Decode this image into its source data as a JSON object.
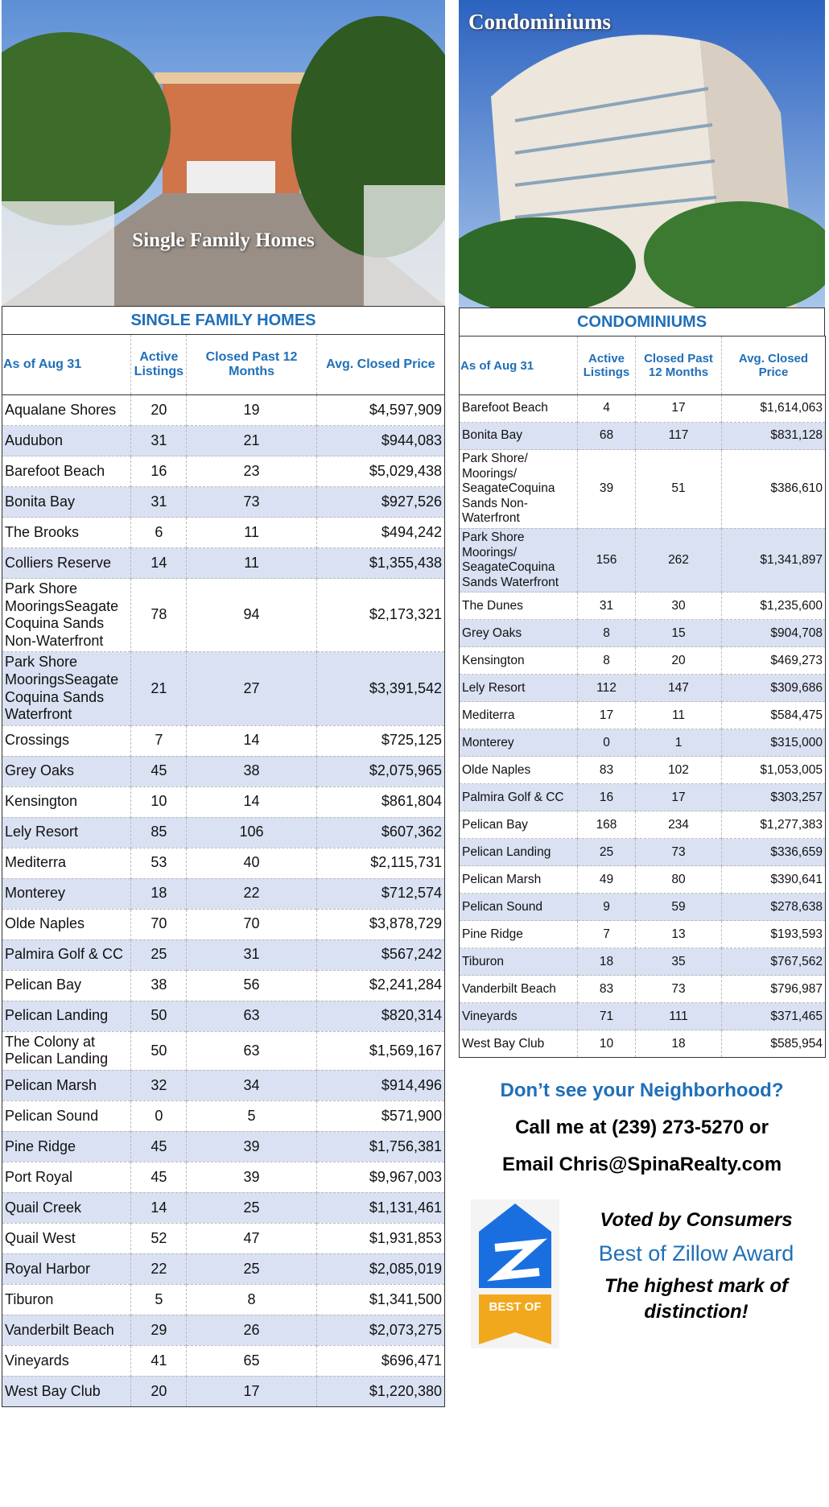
{
  "left_panel": {
    "photo_caption": "Single Family Homes",
    "table": {
      "title": "SINGLE FAMILY HOMES",
      "columns": [
        "As of Aug 31",
        "Active Listings",
        "Closed Past 12 Months",
        "Avg. Closed Price"
      ],
      "rows": [
        [
          "Aqualane Shores",
          "20",
          "19",
          "$4,597,909"
        ],
        [
          "Audubon",
          "31",
          "21",
          "$944,083"
        ],
        [
          "Barefoot Beach",
          "16",
          "23",
          "$5,029,438"
        ],
        [
          "Bonita Bay",
          "31",
          "73",
          "$927,526"
        ],
        [
          "The Brooks",
          "6",
          "11",
          "$494,242"
        ],
        [
          "Colliers Reserve",
          "14",
          "11",
          "$1,355,438"
        ],
        [
          "Park Shore MooringsSeagate Coquina Sands Non-Waterfront",
          "78",
          "94",
          "$2,173,321"
        ],
        [
          "Park Shore MooringsSeagate Coquina Sands Waterfront",
          "21",
          "27",
          "$3,391,542"
        ],
        [
          "Crossings",
          "7",
          "14",
          "$725,125"
        ],
        [
          "Grey Oaks",
          "45",
          "38",
          "$2,075,965"
        ],
        [
          "Kensington",
          "10",
          "14",
          "$861,804"
        ],
        [
          "Lely Resort",
          "85",
          "106",
          "$607,362"
        ],
        [
          "Mediterra",
          "53",
          "40",
          "$2,115,731"
        ],
        [
          "Monterey",
          "18",
          "22",
          "$712,574"
        ],
        [
          "Olde Naples",
          "70",
          "70",
          "$3,878,729"
        ],
        [
          "Palmira Golf & CC",
          "25",
          "31",
          "$567,242"
        ],
        [
          "Pelican Bay",
          "38",
          "56",
          "$2,241,284"
        ],
        [
          "Pelican Landing",
          "50",
          "63",
          "$820,314"
        ],
        [
          "The Colony at Pelican Landing",
          "50",
          "63",
          "$1,569,167"
        ],
        [
          "Pelican Marsh",
          "32",
          "34",
          "$914,496"
        ],
        [
          "Pelican Sound",
          "0",
          "5",
          "$571,900"
        ],
        [
          "Pine Ridge",
          "45",
          "39",
          "$1,756,381"
        ],
        [
          "Port Royal",
          "45",
          "39",
          "$9,967,003"
        ],
        [
          "Quail Creek",
          "14",
          "25",
          "$1,131,461"
        ],
        [
          "Quail West",
          "52",
          "47",
          "$1,931,853"
        ],
        [
          "Royal Harbor",
          "22",
          "25",
          "$2,085,019"
        ],
        [
          "Tiburon",
          "5",
          "8",
          "$1,341,500"
        ],
        [
          "Vanderbilt Beach",
          "29",
          "26",
          "$2,073,275"
        ],
        [
          "Vineyards",
          "41",
          "65",
          "$696,471"
        ],
        [
          "West Bay Club",
          "20",
          "17",
          "$1,220,380"
        ]
      ]
    }
  },
  "right_panel": {
    "photo_caption": "Condominiums",
    "table": {
      "title": "CONDOMINIUMS",
      "columns": [
        "As of Aug 31",
        "Active Listings",
        "Closed Past 12 Months",
        "Avg. Closed Price"
      ],
      "rows": [
        [
          "Barefoot Beach",
          "4",
          "17",
          "$1,614,063"
        ],
        [
          "Bonita Bay",
          "68",
          "117",
          "$831,128"
        ],
        [
          "Park Shore/ Moorings/ SeagateCoquina Sands Non-Waterfront",
          "39",
          "51",
          "$386,610"
        ],
        [
          "Park Shore Moorings/ SeagateCoquina Sands Waterfront",
          "156",
          "262",
          "$1,341,897"
        ],
        [
          "The Dunes",
          "31",
          "30",
          "$1,235,600"
        ],
        [
          "Grey Oaks",
          "8",
          "15",
          "$904,708"
        ],
        [
          "Kensington",
          "8",
          "20",
          "$469,273"
        ],
        [
          "Lely Resort",
          "112",
          "147",
          "$309,686"
        ],
        [
          "Mediterra",
          "17",
          "11",
          "$584,475"
        ],
        [
          "Monterey",
          "0",
          "1",
          "$315,000"
        ],
        [
          "Olde Naples",
          "83",
          "102",
          "$1,053,005"
        ],
        [
          "Palmira Golf & CC",
          "16",
          "17",
          "$303,257"
        ],
        [
          "Pelican Bay",
          "168",
          "234",
          "$1,277,383"
        ],
        [
          "Pelican Landing",
          "25",
          "73",
          "$336,659"
        ],
        [
          "Pelican Marsh",
          "49",
          "80",
          "$390,641"
        ],
        [
          "Pelican Sound",
          "9",
          "59",
          "$278,638"
        ],
        [
          "Pine Ridge",
          "7",
          "13",
          "$193,593"
        ],
        [
          "Tiburon",
          "18",
          "35",
          "$767,562"
        ],
        [
          "Vanderbilt Beach",
          "83",
          "73",
          "$796,987"
        ],
        [
          "Vineyards",
          "71",
          "111",
          "$371,465"
        ],
        [
          "West Bay Club",
          "10",
          "18",
          "$585,954"
        ]
      ]
    }
  },
  "contact": {
    "question": "Don’t see your Neighborhood?",
    "phone_line": "Call me at (239) 273-5270 or",
    "email_line": "Email Chris@SpinaRealty.com"
  },
  "award": {
    "badge_text": "BEST OF",
    "line1": "Voted by Consumers",
    "line2": "Best of Zillow Award",
    "line3": "The highest mark of distinction!"
  }
}
